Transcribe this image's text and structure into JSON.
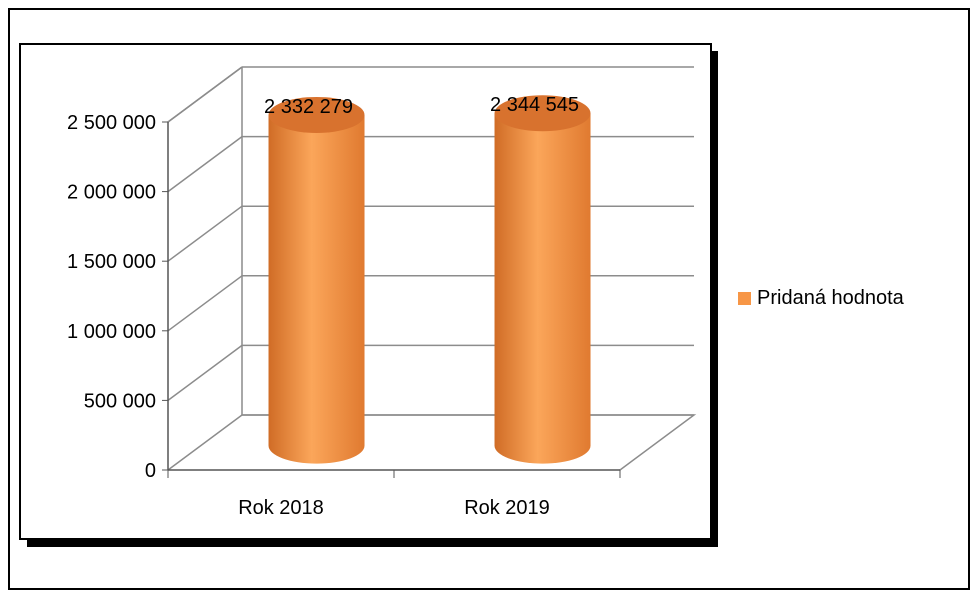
{
  "chart_data": {
    "type": "bar",
    "style": "3d-cylinder",
    "categories": [
      "Rok 2018",
      "Rok 2019"
    ],
    "series": [
      {
        "name": "Pridaná hodnota",
        "values": [
          2332279,
          2344545
        ],
        "color": "#f79646"
      }
    ],
    "data_labels": [
      "2 332 279",
      "2 344 545"
    ],
    "y_ticks": [
      0,
      500000,
      1000000,
      1500000,
      2000000,
      2500000
    ],
    "y_tick_labels": [
      "0",
      "500 000",
      "1 000 000",
      "1 500 000",
      "2 000 000",
      "2 500 000"
    ],
    "ylim": [
      0,
      2500000
    ],
    "grid": true,
    "legend_position": "right",
    "title": "",
    "xlabel": "",
    "ylabel": ""
  }
}
